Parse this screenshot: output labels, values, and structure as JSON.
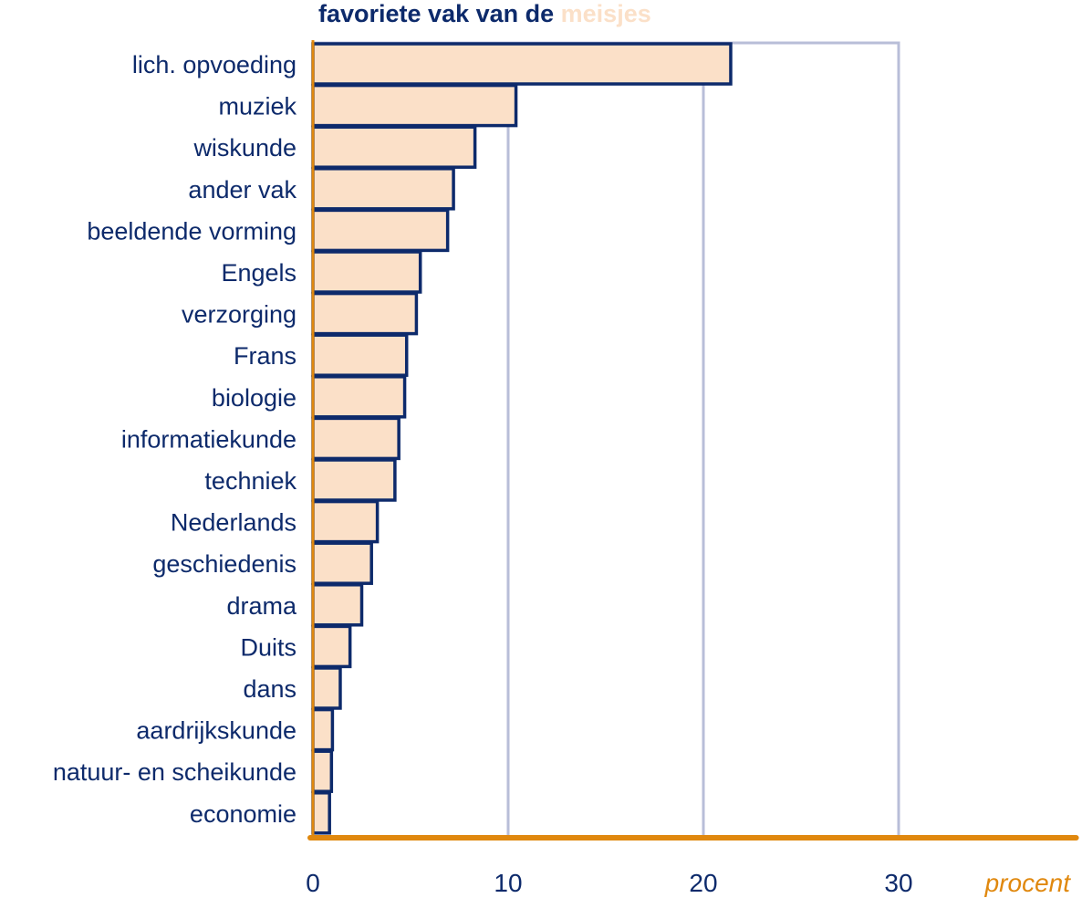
{
  "title": {
    "part1": "favoriete vak van de",
    "part2": "meisjes"
  },
  "colors": {
    "bar_fill": "#fbe0c8",
    "bar_stroke": "#0d2a6b",
    "axis": "#e0880e",
    "grid": "#b8bed8",
    "text": "#0d2a6b"
  },
  "chart_data": {
    "type": "bar",
    "orientation": "horizontal",
    "title": "favoriete vak van de meisjes",
    "xlabel": "procent",
    "ylabel": "",
    "xlim": [
      0,
      39
    ],
    "xticks": [
      0,
      10,
      20,
      30
    ],
    "grid": true,
    "categories": [
      "lich. opvoeding",
      "muziek",
      "wiskunde",
      "ander vak",
      "beeldende vorming",
      "Engels",
      "verzorging",
      "Frans",
      "biologie",
      "informatiekunde",
      "techniek",
      "Nederlands",
      "geschiedenis",
      "drama",
      "Duits",
      "dans",
      "aardrijkskunde",
      "natuur- en scheikunde",
      "economie"
    ],
    "values": [
      21.4,
      10.4,
      8.3,
      7.2,
      6.9,
      5.5,
      5.3,
      4.8,
      4.7,
      4.4,
      4.2,
      3.3,
      3.0,
      2.5,
      1.9,
      1.4,
      1.0,
      0.95,
      0.85
    ]
  }
}
